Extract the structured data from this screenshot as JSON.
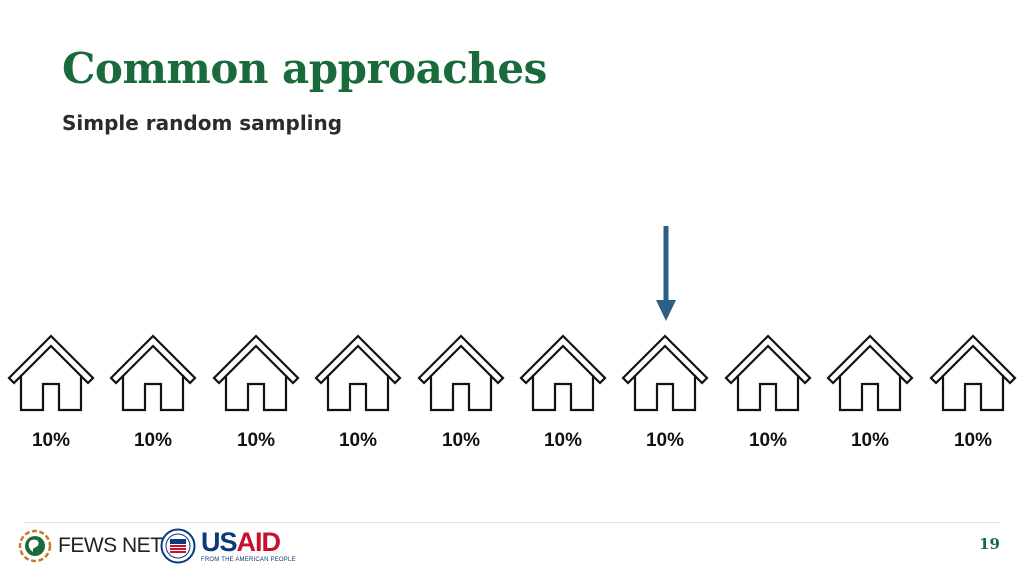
{
  "slide": {
    "title": "Common approaches",
    "subtitle": "Simple random sampling",
    "page_number": "19"
  },
  "houses": {
    "count": 10,
    "selected_index": 6,
    "labels": [
      "10%",
      "10%",
      "10%",
      "10%",
      "10%",
      "10%",
      "10%",
      "10%",
      "10%",
      "10%"
    ],
    "icon": "house-icon",
    "arrow_icon": "down-arrow-icon"
  },
  "colors": {
    "title": "#1a6b3c",
    "subtitle": "#2b2b2b",
    "arrow": "#2b5f84",
    "house_stroke": "#111111",
    "page_number": "#1a6b3c"
  },
  "footer": {
    "fews_logo_text": "FEWS NET",
    "usaid_logo_us": "US",
    "usaid_logo_aid": "AID",
    "usaid_tagline": "FROM THE AMERICAN PEOPLE"
  }
}
